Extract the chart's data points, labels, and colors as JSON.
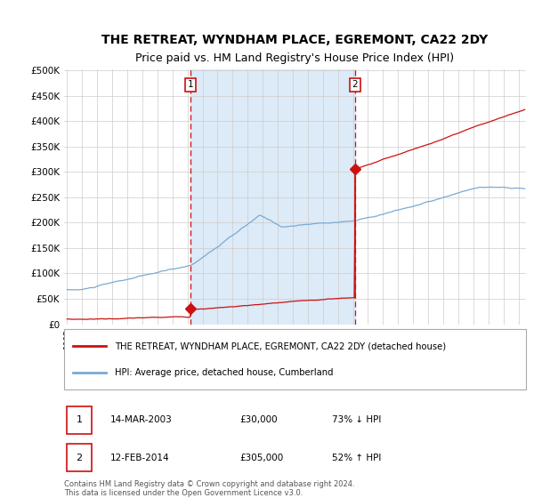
{
  "title": "THE RETREAT, WYNDHAM PLACE, EGREMONT, CA22 2DY",
  "subtitle": "Price paid vs. HM Land Registry's House Price Index (HPI)",
  "ylim": [
    0,
    500000
  ],
  "yticks": [
    0,
    50000,
    100000,
    150000,
    200000,
    250000,
    300000,
    350000,
    400000,
    450000,
    500000
  ],
  "ytick_labels": [
    "£0",
    "£50K",
    "£100K",
    "£150K",
    "£200K",
    "£250K",
    "£300K",
    "£350K",
    "£400K",
    "£450K",
    "£500K"
  ],
  "xlim_start": 1994.8,
  "xlim_end": 2025.5,
  "hpi_color": "#7aaad4",
  "price_color": "#cc1111",
  "sale1_x": 2003.21,
  "sale1_y": 30000,
  "sale2_x": 2014.12,
  "sale2_y": 305000,
  "background_fill": "#ddeaf7",
  "legend_line1": "THE RETREAT, WYNDHAM PLACE, EGREMONT, CA22 2DY (detached house)",
  "legend_line2": "HPI: Average price, detached house, Cumberland",
  "annotation1_label": "1",
  "annotation1_date": "14-MAR-2003",
  "annotation1_price": "£30,000",
  "annotation1_hpi": "73% ↓ HPI",
  "annotation2_label": "2",
  "annotation2_date": "12-FEB-2014",
  "annotation2_price": "£305,000",
  "annotation2_hpi": "52% ↑ HPI",
  "footer": "Contains HM Land Registry data © Crown copyright and database right 2024.\nThis data is licensed under the Open Government Licence v3.0.",
  "title_fontsize": 10,
  "subtitle_fontsize": 9
}
